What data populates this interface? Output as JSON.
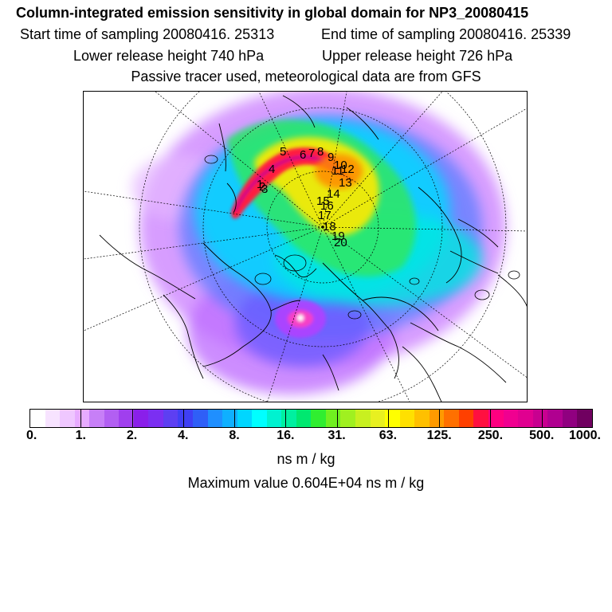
{
  "header": {
    "title": "Column-integrated emission sensitivity in global domain for NP3_20080415",
    "start_label": "Start time of sampling 20080416. 25313",
    "end_label": "End time of sampling 20080416. 25339",
    "lower_label": "Lower release height  740 hPa",
    "upper_label": "Upper release height  726 hPa",
    "tracer_note": "Passive tracer used, meteorological data are from GFS"
  },
  "map": {
    "projection": "north polar stereographic",
    "point_labels": [
      "1",
      "2",
      "3",
      "4",
      "5",
      "6",
      "7",
      "8",
      "9",
      "10",
      "11",
      "12",
      "13",
      "14",
      "15",
      "16",
      "17",
      "18",
      "19",
      "20"
    ]
  },
  "colorbar": {
    "colors": [
      "#ffffff",
      "#f7e3ff",
      "#efc7ff",
      "#e7abff",
      "#c77ff7",
      "#b25ff2",
      "#a03fee",
      "#8a1fea",
      "#7b2ff2",
      "#5d3ff2",
      "#3f3ff5",
      "#2f5ff7",
      "#1f8fff",
      "#0fb0ff",
      "#00d6ff",
      "#00ffff",
      "#00f2d0",
      "#00f0a0",
      "#00e870",
      "#30ee30",
      "#70f020",
      "#a0f020",
      "#c8f020",
      "#e8f020",
      "#ffff00",
      "#ffe000",
      "#ffc000",
      "#ff9a00",
      "#ff7000",
      "#ff4000",
      "#ff1040",
      "#ff0080",
      "#f00090",
      "#e00090",
      "#c80090",
      "#b00090",
      "#900080",
      "#700060"
    ],
    "tick_labels": [
      "0.",
      "1.",
      "2.",
      "4.",
      "8.",
      "16.",
      "31.",
      "63.",
      "125.",
      "250.",
      "500.",
      "1000."
    ],
    "units": "ns m / kg"
  },
  "max_value_text": "Maximum value  0.604E+04 ns m / kg"
}
